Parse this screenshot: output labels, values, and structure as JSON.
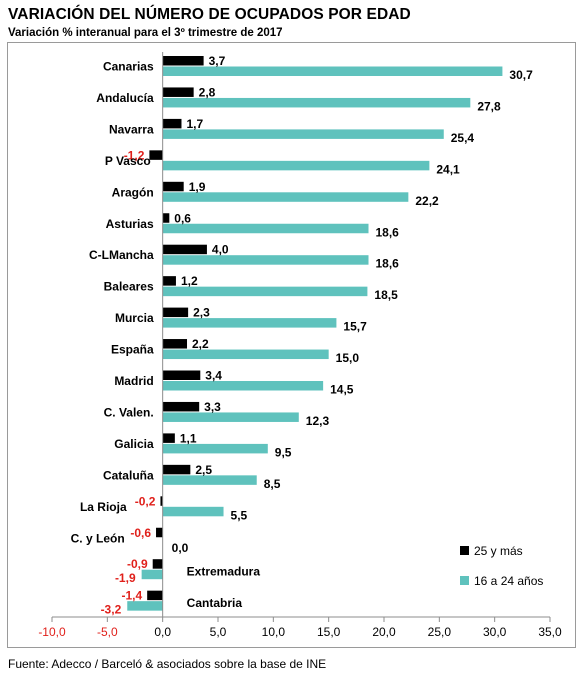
{
  "title": "VARIACIÓN DEL NÚMERO DE OCUPADOS POR EDAD",
  "subtitle": "Variación % interanual para el 3º trimestre de 2017",
  "source": "Fuente: Adecco / Barceló & asociados sobre la base de INE",
  "colors": {
    "series_25": "#000000",
    "series_16": "#5fc2bd",
    "negative_label": "#e0201b",
    "axis": "#8c8c8c"
  },
  "chart_data": {
    "type": "bar",
    "orientation": "horizontal",
    "categories": [
      "Canarias",
      "Andalucía",
      "Navarra",
      "P Vasco",
      "Aragón",
      "Asturias",
      "C-LMancha",
      "Baleares",
      "Murcia",
      "España",
      "Madrid",
      "C. Valen.",
      "Galicia",
      "Cataluña",
      "La Rioja",
      "C. y León",
      "Extremadura",
      "Cantabria"
    ],
    "series": [
      {
        "name": "25 y más",
        "values": [
          3.7,
          2.8,
          1.7,
          -1.2,
          1.9,
          0.6,
          4.0,
          1.2,
          2.3,
          2.2,
          3.4,
          3.3,
          1.1,
          2.5,
          -0.2,
          -0.6,
          -0.9,
          -1.4
        ]
      },
      {
        "name": "16 a 24 años",
        "values": [
          30.7,
          27.8,
          25.4,
          24.1,
          22.2,
          18.6,
          18.6,
          18.5,
          15.7,
          15.0,
          14.5,
          12.3,
          9.5,
          8.5,
          5.5,
          0.0,
          -1.9,
          -3.2
        ]
      }
    ],
    "xlim": [
      -10,
      35
    ],
    "xticks": [
      "-10,0",
      "-5,0",
      "0,0",
      "5,0",
      "10,0",
      "15,0",
      "20,0",
      "25,0",
      "30,0",
      "35,0"
    ],
    "legend_position": "bottom-right",
    "grid": false
  }
}
